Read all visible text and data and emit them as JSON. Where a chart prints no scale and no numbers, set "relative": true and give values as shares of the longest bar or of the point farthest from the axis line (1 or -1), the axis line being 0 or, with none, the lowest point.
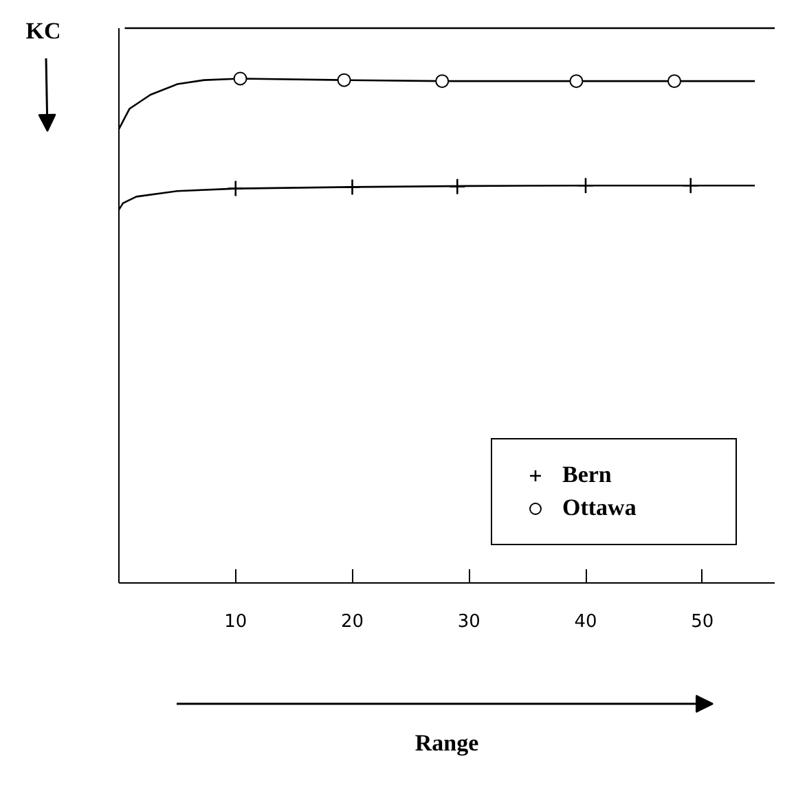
{
  "chart_data": {
    "type": "line",
    "relative": true,
    "xlabel": "Range",
    "ylabel": "KC",
    "xlim": [
      0,
      56.2
    ],
    "xticks": [
      10,
      20,
      30,
      40,
      50
    ],
    "grid": false,
    "legend": "bottom right",
    "series": [
      {
        "color": "#000000",
        "marker": "none",
        "x": [
          0,
          0.35,
          1.5,
          5,
          10,
          20,
          30,
          40,
          54.5
        ],
        "values": [
          0.74,
          0.753,
          0.766,
          0.777,
          0.782,
          0.785,
          0.787,
          0.788,
          0.788
        ]
      },
      {
        "color": "#000000",
        "marker": "none",
        "x": [
          0,
          0.9,
          2.7,
          5,
          7.3,
          10.4,
          19.3,
          27.7,
          39.2,
          47.6,
          54.5
        ],
        "values": [
          0.9,
          0.94,
          0.968,
          0.989,
          0.997,
          1.0,
          0.997,
          0.995,
          0.995,
          0.995,
          0.995
        ]
      },
      {
        "type": "scatter",
        "name": "Bern",
        "color": "#000000",
        "marker": "cross",
        "x": [
          10,
          20,
          29,
          40,
          49
        ],
        "values": [
          0.782,
          0.785,
          0.786,
          0.788,
          0.788
        ]
      },
      {
        "type": "scatter",
        "name": "Ottawa",
        "color": "#000000",
        "marker": "circle",
        "x": [
          10.4,
          19.3,
          27.7,
          39.2,
          47.6
        ],
        "values": [
          1.0,
          0.997,
          0.995,
          0.995,
          0.995
        ]
      }
    ]
  }
}
